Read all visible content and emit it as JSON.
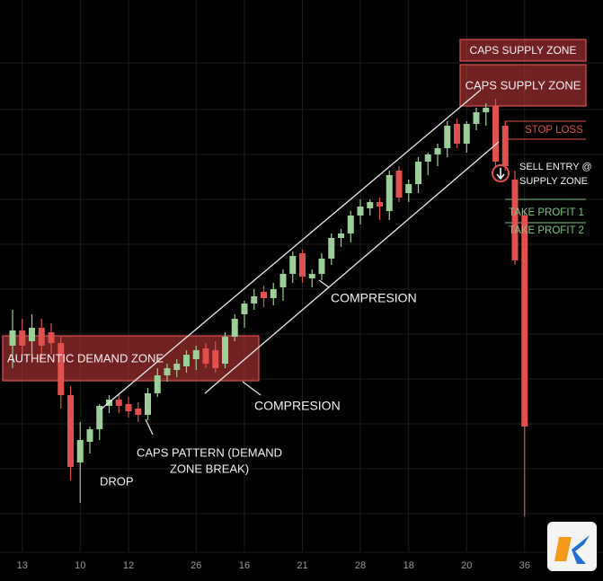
{
  "chart_data": {
    "type": "candlestick",
    "ylim": [
      0,
      600
    ],
    "up_color": "#9ccf98",
    "down_color": "#e0504c",
    "categories": [
      null,
      "13",
      null,
      null,
      null,
      null,
      null,
      "10",
      null,
      null,
      null,
      null,
      "12",
      null,
      null,
      null,
      null,
      null,
      null,
      "26",
      null,
      null,
      null,
      null,
      "16",
      null,
      null,
      null,
      null,
      null,
      "21",
      null,
      null,
      null,
      null,
      null,
      "28",
      null,
      null,
      null,
      null,
      "18",
      null,
      null,
      null,
      null,
      null,
      "20",
      null,
      null,
      null,
      null,
      null,
      "36"
    ],
    "open": [
      215,
      232,
      220,
      235,
      230,
      218,
      160,
      85,
      108,
      122,
      148,
      155,
      150,
      145,
      138,
      162,
      182,
      188,
      192,
      200,
      212,
      210,
      195,
      225,
      250,
      262,
      275,
      268,
      280,
      295,
      318,
      290,
      295,
      312,
      335,
      340,
      360,
      368,
      375,
      365,
      410,
      385,
      395,
      420,
      428,
      435,
      462,
      440,
      462,
      475,
      482,
      460,
      400,
      360
    ],
    "high": [
      255,
      245,
      250,
      245,
      240,
      225,
      170,
      130,
      125,
      150,
      160,
      162,
      158,
      152,
      168,
      190,
      195,
      200,
      210,
      215,
      218,
      220,
      230,
      250,
      265,
      278,
      282,
      285,
      300,
      320,
      322,
      300,
      318,
      340,
      345,
      365,
      378,
      378,
      380,
      410,
      415,
      400,
      425,
      430,
      440,
      465,
      468,
      465,
      480,
      485,
      490,
      465,
      410,
      365
    ],
    "low": [
      190,
      205,
      205,
      200,
      205,
      145,
      65,
      40,
      95,
      110,
      140,
      140,
      135,
      130,
      132,
      158,
      175,
      180,
      185,
      188,
      190,
      185,
      190,
      220,
      235,
      255,
      258,
      260,
      265,
      285,
      285,
      280,
      288,
      305,
      325,
      330,
      350,
      360,
      355,
      355,
      375,
      375,
      385,
      405,
      415,
      425,
      435,
      430,
      455,
      460,
      415,
      410,
      305,
      25
    ],
    "close": [
      232,
      215,
      235,
      215,
      218,
      160,
      80,
      110,
      122,
      148,
      155,
      148,
      142,
      138,
      162,
      182,
      190,
      195,
      205,
      210,
      195,
      190,
      225,
      245,
      262,
      270,
      268,
      278,
      295,
      315,
      292,
      295,
      312,
      335,
      340,
      360,
      370,
      375,
      370,
      405,
      380,
      395,
      420,
      428,
      435,
      460,
      440,
      462,
      475,
      480,
      420,
      415,
      310,
      125
    ],
    "zones": [
      {
        "label": "CAPS SUPPLY ZONE",
        "low": 532,
        "high": 556
      },
      {
        "label": "CAPS SUPPLY ZONE",
        "low": 482,
        "high": 528
      },
      {
        "label": "AUTHENTIC DEMAND ZONE",
        "low": 176,
        "high": 226
      }
    ],
    "levels": [
      {
        "label": "STOP LOSS",
        "value": 445,
        "color": "#e0504c"
      },
      {
        "label": "TAKE PROFIT 1",
        "value": 378,
        "color": "#7ec87e"
      },
      {
        "label": "TAKE PROFIT 2",
        "value": 352,
        "color": "#7ec87e"
      }
    ],
    "sell_entry": {
      "label": [
        "SELL ENTRY @",
        "SUPPLY ZONE"
      ],
      "value": 407
    },
    "annotations": [
      "COMPRESION",
      "COMPRESION",
      [
        "CAPS PATTERN (DEMAND",
        "ZONE BREAK)"
      ],
      "DROP"
    ]
  }
}
